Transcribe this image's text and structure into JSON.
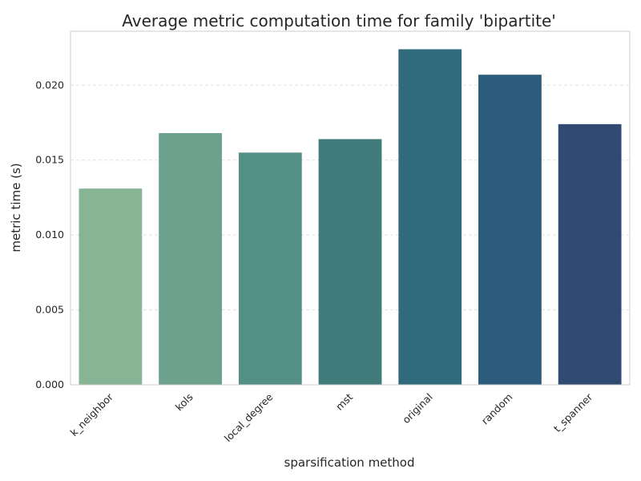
{
  "chart_data": {
    "type": "bar",
    "title": "Average metric computation time for family 'bipartite'",
    "xlabel": "sparsification method",
    "ylabel": "metric time (s)",
    "categories": [
      "k_neighbor",
      "kols",
      "local_degree",
      "mst",
      "original",
      "random",
      "t_spanner"
    ],
    "values": [
      0.0131,
      0.0168,
      0.0155,
      0.0164,
      0.0224,
      0.0207,
      0.0174
    ],
    "ylim": [
      0,
      0.0236
    ],
    "yticks": [
      0.0,
      0.005,
      0.01,
      0.015,
      0.02
    ],
    "ytick_labels": [
      "0.000",
      "0.005",
      "0.010",
      "0.015",
      "0.020"
    ],
    "colors": [
      "#88b496",
      "#6ba18d",
      "#538e87",
      "#417b7c",
      "#2f6b7d",
      "#2b5c7b",
      "#304a72"
    ],
    "grid": true,
    "grid_color": "#e0e0e0",
    "axes_edge_color": "#cccccc"
  }
}
